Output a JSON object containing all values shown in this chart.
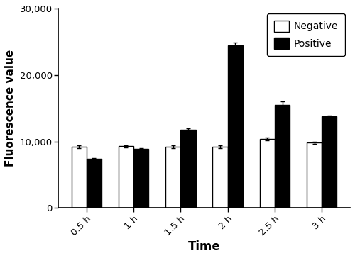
{
  "categories": [
    "0.5 h",
    "1 h",
    "1.5 h",
    "2 h",
    "2.5 h",
    "3 h"
  ],
  "negative_values": [
    9200,
    9300,
    9200,
    9200,
    10400,
    9800
  ],
  "positive_values": [
    7400,
    8900,
    11800,
    24500,
    15500,
    13800
  ],
  "negative_errors": [
    200,
    150,
    200,
    200,
    200,
    200
  ],
  "positive_errors": [
    100,
    100,
    150,
    350,
    500,
    150
  ],
  "negative_color": "#ffffff",
  "positive_color": "#000000",
  "bar_edge_color": "#000000",
  "xlabel": "Time",
  "ylabel": "Fluorescence value",
  "ylim": [
    0,
    30000
  ],
  "yticks": [
    0,
    10000,
    20000,
    30000
  ],
  "ytick_labels": [
    "0",
    "10,000",
    "20,000",
    "30,000"
  ],
  "bar_width": 0.32,
  "legend_labels": [
    "Negative",
    "Positive"
  ],
  "background_color": "#ffffff",
  "figsize": [
    5.0,
    3.64
  ],
  "dpi": 100
}
